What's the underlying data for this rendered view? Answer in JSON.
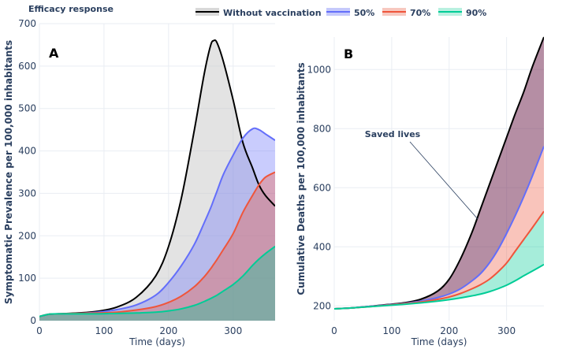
{
  "legend": {
    "title": "Efficacy response",
    "items": [
      {
        "label": "Without vaccination",
        "color": "#000000",
        "fill": "#d9d9d9"
      },
      {
        "label": "50%",
        "color": "#636efa",
        "fill": "#c5c9fb"
      },
      {
        "label": "70%",
        "color": "#ef553b",
        "fill": "#f7c8bf"
      },
      {
        "label": "90%",
        "color": "#00cc96",
        "fill": "#b8f0e0"
      }
    ]
  },
  "chart_data": [
    {
      "type": "area",
      "panel_label": "A",
      "xlabel": "Time (days)",
      "ylabel": "Symptomatic Prevalence per 100,000 inhabitants",
      "xlim": [
        0,
        365
      ],
      "ylim": [
        0,
        700
      ],
      "x_ticks": [
        0,
        100,
        200,
        300
      ],
      "y_ticks": [
        0,
        100,
        200,
        300,
        400,
        500,
        600,
        700
      ],
      "grid": true,
      "x": [
        0,
        15,
        30,
        60,
        90,
        120,
        150,
        180,
        200,
        220,
        240,
        255,
        265,
        270,
        275,
        285,
        300,
        315,
        330,
        340,
        350,
        365
      ],
      "series": [
        {
          "name": "Without vaccination",
          "values": [
            10,
            15,
            16,
            18,
            22,
            32,
            55,
            105,
            175,
            290,
            450,
            580,
            648,
            660,
            655,
            610,
            520,
            420,
            360,
            320,
            295,
            270
          ]
        },
        {
          "name": "50%",
          "values": [
            10,
            15,
            16,
            17,
            20,
            26,
            37,
            60,
            90,
            130,
            180,
            230,
            265,
            285,
            305,
            345,
            390,
            430,
            452,
            450,
            440,
            425
          ]
        },
        {
          "name": "70%",
          "values": [
            10,
            15,
            16,
            17,
            18,
            20,
            25,
            33,
            43,
            58,
            80,
            103,
            122,
            133,
            144,
            168,
            205,
            255,
            295,
            320,
            338,
            350
          ]
        },
        {
          "name": "90%",
          "values": [
            10,
            15,
            16,
            16,
            16,
            17,
            18,
            20,
            23,
            28,
            36,
            45,
            52,
            56,
            60,
            70,
            85,
            105,
            130,
            145,
            158,
            175
          ]
        }
      ]
    },
    {
      "type": "area",
      "panel_label": "B",
      "xlabel": "Time (days)",
      "ylabel": "Cumulative Deaths per 100,000 inhabitants",
      "annotation": "Saved lives",
      "xlim": [
        0,
        365
      ],
      "ylim": [
        150,
        1110
      ],
      "x_ticks": [
        0,
        100,
        200,
        300
      ],
      "y_ticks": [
        200,
        400,
        600,
        800,
        1000
      ],
      "grid": true,
      "x": [
        0,
        30,
        60,
        90,
        120,
        150,
        180,
        200,
        220,
        240,
        255,
        270,
        285,
        300,
        315,
        330,
        345,
        365
      ],
      "series": [
        {
          "name": "Without vaccination",
          "values": [
            190,
            193,
            198,
            204,
            210,
            222,
            250,
            290,
            360,
            450,
            530,
            610,
            690,
            770,
            850,
            925,
            1010,
            1110
          ]
        },
        {
          "name": "50%",
          "values": [
            190,
            193,
            198,
            203,
            208,
            216,
            228,
            240,
            258,
            285,
            310,
            345,
            390,
            445,
            505,
            570,
            640,
            740
          ]
        },
        {
          "name": "70%",
          "values": [
            190,
            193,
            197,
            202,
            207,
            213,
            222,
            230,
            242,
            258,
            272,
            290,
            315,
            345,
            385,
            425,
            465,
            520
          ]
        },
        {
          "name": "90%",
          "values": [
            190,
            193,
            197,
            201,
            205,
            210,
            216,
            221,
            227,
            234,
            240,
            248,
            258,
            270,
            285,
            302,
            318,
            340
          ]
        }
      ]
    }
  ]
}
